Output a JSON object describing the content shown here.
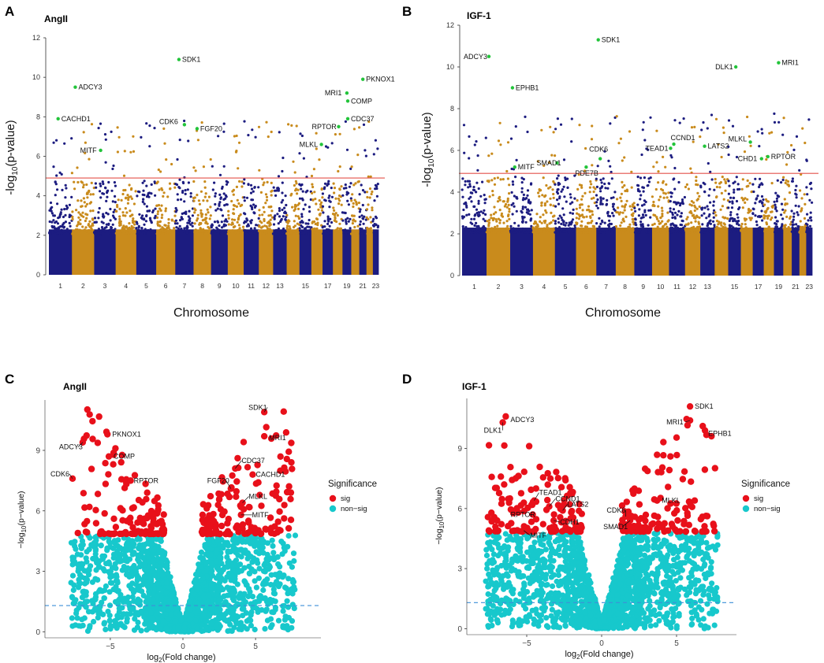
{
  "colors": {
    "navy": "#1c1c80",
    "gold": "#c98b1c",
    "threshold": "#e4504a",
    "label_point": "#22c43a",
    "sig": "#e8101a",
    "nonsig": "#17c8cc",
    "dashed": "#3d8fd8"
  },
  "chart_data": [
    {
      "type": "scatter",
      "subtype": "manhattan",
      "panel": "A",
      "title": "AngII",
      "xlabel": "Chromosome",
      "ylabel_main": "-log",
      "ylabel_sub": "10",
      "ylabel_tail": "(p-value)",
      "ylim": [
        0,
        12
      ],
      "yticks": [
        "0",
        "2",
        "4",
        "6",
        "8",
        "10",
        "12"
      ],
      "chromosomes": [
        "1",
        "2",
        "3",
        "4",
        "5",
        "6",
        "7",
        "8",
        "9",
        "10",
        "11",
        "12",
        "13",
        "14",
        "15",
        "16",
        "17",
        "18",
        "19",
        "20",
        "21",
        "22",
        "23"
      ],
      "xtick_labels": [
        "1",
        "2",
        "3",
        "4",
        "5",
        "6",
        "7",
        "8",
        "9",
        "10",
        "11",
        "12",
        "13",
        "15",
        "17",
        "19",
        "21",
        "23"
      ],
      "threshold": 4.9,
      "background_max": 4.6,
      "scatter_seed": 11,
      "genes": [
        {
          "name": "SDK1",
          "chr": 7,
          "pos": 0.2,
          "y": 10.9,
          "dx": 4,
          "dy": 0
        },
        {
          "name": "ADCY3",
          "chr": 2,
          "pos": 0.15,
          "y": 9.5,
          "dx": 4,
          "dy": 0
        },
        {
          "name": "MRI1",
          "chr": 19,
          "pos": 0.5,
          "y": 9.2,
          "dx": -28,
          "dy": 0
        },
        {
          "name": "PKNOX1",
          "chr": 21,
          "pos": 0.5,
          "y": 9.9,
          "dx": 4,
          "dy": 0
        },
        {
          "name": "COMP",
          "chr": 19,
          "pos": 0.6,
          "y": 8.8,
          "dx": 4,
          "dy": 0
        },
        {
          "name": "CACHD1",
          "chr": 1,
          "pos": 0.4,
          "y": 7.9,
          "dx": 4,
          "dy": 0
        },
        {
          "name": "CDC37",
          "chr": 19,
          "pos": 0.6,
          "y": 7.9,
          "dx": 4,
          "dy": 0
        },
        {
          "name": "CDK6",
          "chr": 7,
          "pos": 0.5,
          "y": 7.6,
          "dx": -32,
          "dy": -4
        },
        {
          "name": "FGF20",
          "chr": 8,
          "pos": 0.2,
          "y": 7.4,
          "dx": 4,
          "dy": 0
        },
        {
          "name": "RPTOR",
          "chr": 18,
          "pos": 0.6,
          "y": 7.5,
          "dx": -34,
          "dy": 0
        },
        {
          "name": "MITF",
          "chr": 3,
          "pos": 0.3,
          "y": 6.3,
          "dx": -26,
          "dy": 0
        },
        {
          "name": "MLKL",
          "chr": 16,
          "pos": 0.9,
          "y": 6.6,
          "dx": -28,
          "dy": 0
        }
      ]
    },
    {
      "type": "scatter",
      "subtype": "manhattan",
      "panel": "B",
      "title": "IGF-1",
      "xlabel": "Chromosome",
      "ylabel_main": "-log",
      "ylabel_sub": "10",
      "ylabel_tail": "(p-value)",
      "ylim": [
        0,
        12
      ],
      "yticks": [
        "0",
        "2",
        "4",
        "6",
        "8",
        "10",
        "12"
      ],
      "chromosomes": [
        "1",
        "2",
        "3",
        "4",
        "5",
        "6",
        "7",
        "8",
        "9",
        "10",
        "11",
        "12",
        "13",
        "14",
        "15",
        "16",
        "17",
        "18",
        "19",
        "20",
        "21",
        "22",
        "23"
      ],
      "xtick_labels": [
        "1",
        "2",
        "3",
        "4",
        "5",
        "6",
        "7",
        "8",
        "9",
        "10",
        "11",
        "12",
        "13",
        "15",
        "17",
        "19",
        "21",
        "23"
      ],
      "threshold": 4.9,
      "background_max": 4.6,
      "scatter_seed": 29,
      "genes": [
        {
          "name": "SDK1",
          "chr": 7,
          "pos": 0.1,
          "y": 11.3,
          "dx": 4,
          "dy": 0
        },
        {
          "name": "ADCY3",
          "chr": 2,
          "pos": 0.1,
          "y": 10.5,
          "dx": -32,
          "dy": 0
        },
        {
          "name": "MRI1",
          "chr": 19,
          "pos": 0.5,
          "y": 10.2,
          "dx": 4,
          "dy": 0
        },
        {
          "name": "DLK1",
          "chr": 15,
          "pos": 0.6,
          "y": 10.0,
          "dx": -26,
          "dy": 0
        },
        {
          "name": "EPHB1",
          "chr": 3,
          "pos": 0.1,
          "y": 9.0,
          "dx": 4,
          "dy": 0
        },
        {
          "name": "CCND1",
          "chr": 11,
          "pos": 0.3,
          "y": 6.3,
          "dx": -4,
          "dy": -8
        },
        {
          "name": "TEAD1",
          "chr": 11,
          "pos": 0.1,
          "y": 6.1,
          "dx": -32,
          "dy": 0
        },
        {
          "name": "LATS2",
          "chr": 13,
          "pos": 0.3,
          "y": 6.2,
          "dx": 4,
          "dy": 0
        },
        {
          "name": "MLKL",
          "chr": 16,
          "pos": 0.8,
          "y": 6.4,
          "dx": -28,
          "dy": -4
        },
        {
          "name": "CDK6",
          "chr": 7,
          "pos": 0.2,
          "y": 5.6,
          "dx": -14,
          "dy": -12
        },
        {
          "name": "SMAD1",
          "chr": 5,
          "pos": 0.1,
          "y": 5.4,
          "dx": -26,
          "dy": 0
        },
        {
          "name": "PDE7B",
          "chr": 6,
          "pos": 0.5,
          "y": 5.2,
          "dx": -14,
          "dy": 8
        },
        {
          "name": "MITF",
          "chr": 3,
          "pos": 0.2,
          "y": 5.2,
          "dx": 4,
          "dy": 0
        },
        {
          "name": "CHD1",
          "chr": 17,
          "pos": 0.8,
          "y": 5.6,
          "dx": -30,
          "dy": 0
        },
        {
          "name": "RPTOR",
          "chr": 18,
          "pos": 0.4,
          "y": 5.7,
          "dx": 4,
          "dy": 0
        }
      ]
    },
    {
      "type": "scatter",
      "subtype": "volcano",
      "panel": "C",
      "title": "AngII",
      "xlabel_main": "log",
      "xlabel_sub": "2",
      "xlabel_tail": "(Fold change)",
      "ylabel_main": "−log",
      "ylabel_sub": "10",
      "ylabel_tail": "(p−value)",
      "xlim": [
        -9.5,
        9.5
      ],
      "ylim": [
        -0.3,
        11.5
      ],
      "xticks": [
        -5,
        0,
        5
      ],
      "xtick_labels": [
        "−5",
        "0",
        "5"
      ],
      "yticks": [
        0,
        3,
        6,
        9
      ],
      "ytick_labels": [
        "0",
        "3",
        "6",
        "9"
      ],
      "threshold_line": 1.3,
      "sig_cutoff": 4.85,
      "scatter_seed": 53,
      "legend": {
        "title": "Significance",
        "items": [
          "sig",
          "non−sig"
        ],
        "placement": "right"
      },
      "genes": [
        {
          "name": "SDK1",
          "x": 5.6,
          "y": 10.9,
          "dx": -20,
          "dy": -6
        },
        {
          "name": "MRI1",
          "x": 5.6,
          "y": 9.7,
          "dx": 6,
          "dy": 2
        },
        {
          "name": "CDC37",
          "x": 3.6,
          "y": 8.1,
          "dx": 8,
          "dy": -10
        },
        {
          "name": "CACHD1",
          "x": 4.8,
          "y": 7.8,
          "dx": 4,
          "dy": 0
        },
        {
          "name": "FGF20",
          "x": 3.3,
          "y": 7.1,
          "dx": -30,
          "dy": -10
        },
        {
          "name": "MLKL",
          "x": 4.1,
          "y": 6.4,
          "dx": 8,
          "dy": -8
        },
        {
          "name": "MITF",
          "x": 4.0,
          "y": 5.8,
          "dx": 14,
          "dy": 0
        },
        {
          "name": "PKNOX1",
          "x": -5.2,
          "y": 9.8,
          "dx": 6,
          "dy": 0
        },
        {
          "name": "ADCY3",
          "x": -6.9,
          "y": 9.4,
          "dx": -30,
          "dy": 6
        },
        {
          "name": "COMP",
          "x": -5.1,
          "y": 8.7,
          "dx": 6,
          "dy": 0
        },
        {
          "name": "CDK6",
          "x": -7.6,
          "y": 7.6,
          "dx": -28,
          "dy": -6
        },
        {
          "name": "RPTOR",
          "x": -3.6,
          "y": 7.5,
          "dx": 4,
          "dy": 0
        }
      ]
    },
    {
      "type": "scatter",
      "subtype": "volcano",
      "panel": "D",
      "title": "IGF-1",
      "xlabel_main": "log",
      "xlabel_sub": "2",
      "xlabel_tail": "(Fold change)",
      "ylabel_main": "−log",
      "ylabel_sub": "10",
      "ylabel_tail": "(p−value)",
      "xlim": [
        -9.0,
        9.0
      ],
      "ylim": [
        -0.3,
        11.5
      ],
      "xticks": [
        -5,
        0,
        5
      ],
      "xtick_labels": [
        "−5",
        "0",
        "5"
      ],
      "yticks": [
        0,
        3,
        6,
        9
      ],
      "ytick_labels": [
        "0",
        "3",
        "6",
        "9"
      ],
      "threshold_line": 1.3,
      "sig_cutoff": 4.85,
      "scatter_seed": 71,
      "legend": {
        "title": "Significance",
        "items": [
          "sig",
          "non−sig"
        ],
        "placement": "right"
      },
      "genes": [
        {
          "name": "SDK1",
          "x": 5.9,
          "y": 11.1,
          "dx": 6,
          "dy": 0
        },
        {
          "name": "MRI1",
          "x": 5.9,
          "y": 10.4,
          "dx": -30,
          "dy": 2
        },
        {
          "name": "EPHB1",
          "x": 6.9,
          "y": 9.9,
          "dx": 4,
          "dy": 4
        },
        {
          "name": "ADCY3",
          "x": -6.4,
          "y": 10.6,
          "dx": 6,
          "dy": 4
        },
        {
          "name": "DLK1",
          "x": -6.6,
          "y": 10.3,
          "dx": -24,
          "dy": 10
        },
        {
          "name": "TEAD1",
          "x": -4.5,
          "y": 6.4,
          "dx": 6,
          "dy": -10
        },
        {
          "name": "CCND1",
          "x": -3.5,
          "y": 6.1,
          "dx": 8,
          "dy": -10
        },
        {
          "name": "LATS2",
          "x": -2.6,
          "y": 5.9,
          "dx": 6,
          "dy": -8
        },
        {
          "name": "RPTOR",
          "x": -4.6,
          "y": 5.7,
          "dx": -28,
          "dy": 0
        },
        {
          "name": "CDH1",
          "x": -3.2,
          "y": 5.4,
          "dx": 8,
          "dy": 2
        },
        {
          "name": "MITF",
          "x": -5.2,
          "y": 4.9,
          "dx": 8,
          "dy": 6
        },
        {
          "name": "MLKL",
          "x": 3.7,
          "y": 6.4,
          "dx": 6,
          "dy": 0
        },
        {
          "name": "CDK6",
          "x": 1.6,
          "y": 5.6,
          "dx": -24,
          "dy": -8
        },
        {
          "name": "SMAD1",
          "x": 1.9,
          "y": 5.4,
          "dx": -34,
          "dy": 8
        }
      ]
    }
  ]
}
